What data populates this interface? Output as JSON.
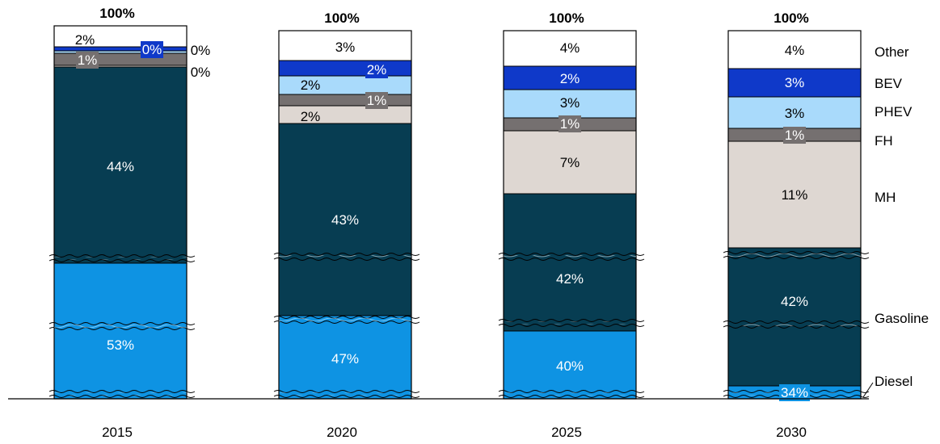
{
  "chart_data": {
    "type": "bar",
    "stacked": true,
    "categories": [
      "2015",
      "2020",
      "2025",
      "2030"
    ],
    "totals": [
      "100%",
      "100%",
      "100%",
      "100%"
    ],
    "series": [
      {
        "name": "Diesel",
        "values": [
          53,
          47,
          40,
          34
        ],
        "labels": [
          "53%",
          "47%",
          "40%",
          "34%"
        ],
        "color": "#0e93e3"
      },
      {
        "name": "Gasoline",
        "values": [
          44,
          43,
          42,
          42
        ],
        "labels": [
          "44%",
          "43%",
          "42%",
          "42%"
        ],
        "color": "#073d52"
      },
      {
        "name": "MH",
        "values": [
          0,
          2,
          7,
          11
        ],
        "labels": [
          "0%",
          "2%",
          "7%",
          "11%"
        ],
        "color": "#ded7d2"
      },
      {
        "name": "FH",
        "values": [
          1,
          1,
          1,
          1
        ],
        "labels": [
          "1%",
          "1%",
          "1%",
          "1%"
        ],
        "color": "#757070"
      },
      {
        "name": "PHEV",
        "values": [
          0,
          2,
          3,
          3
        ],
        "labels": [
          "0%",
          "2%",
          "3%",
          "3%"
        ],
        "color": "#a9dafb"
      },
      {
        "name": "BEV",
        "values": [
          0,
          2,
          2,
          3
        ],
        "labels": [
          "0%",
          "2%",
          "2%",
          "3%"
        ],
        "color": "#0f39c9"
      },
      {
        "name": "Other",
        "values": [
          2,
          3,
          4,
          4
        ],
        "labels": [
          "2%",
          "3%",
          "4%",
          "4%"
        ],
        "color": "#ffffff"
      }
    ],
    "axis_break": true,
    "legend_position": "right"
  }
}
